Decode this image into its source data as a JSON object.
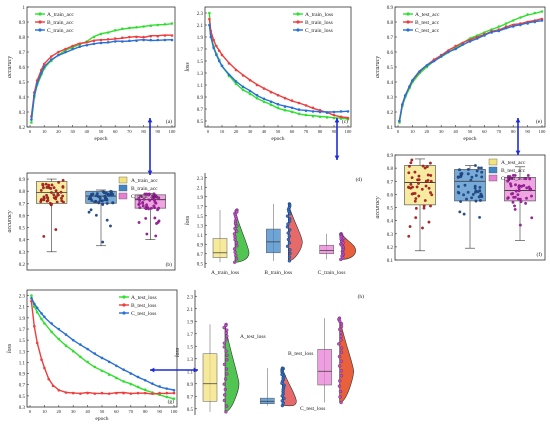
{
  "colors": {
    "A": "#2ee02e",
    "B": "#f03c3c",
    "C": "#2a6fd6",
    "connector": "#1f2bd8",
    "boxA": "#f4e27a",
    "boxB": "#3f86c8",
    "boxC": "#e87fd6"
  },
  "chart_data": [
    {
      "panel": "a",
      "type": "line",
      "tag": "(a)",
      "xlabel": "epoch",
      "ylabel": "accuracy",
      "xticks": [
        "0",
        "10",
        "20",
        "30",
        "40",
        "50",
        "60",
        "70",
        "80",
        "90",
        "100"
      ],
      "yticks": [
        "0.2",
        "0.3",
        "0.4",
        "0.5",
        "0.6",
        "0.7",
        "0.8",
        "0.9",
        "1"
      ],
      "xlim": [
        0,
        100
      ],
      "ylim": [
        0.2,
        1.0
      ],
      "grid": false,
      "legend": "top-left",
      "series": [
        {
          "name": "A_train_acc",
          "color_key": "A",
          "x": [
            1,
            3,
            5,
            8,
            10,
            15,
            20,
            25,
            30,
            35,
            40,
            45,
            50,
            55,
            60,
            65,
            70,
            75,
            80,
            85,
            90,
            95,
            100
          ],
          "y": [
            0.23,
            0.4,
            0.48,
            0.55,
            0.59,
            0.64,
            0.68,
            0.71,
            0.73,
            0.75,
            0.77,
            0.8,
            0.82,
            0.83,
            0.845,
            0.855,
            0.86,
            0.865,
            0.87,
            0.875,
            0.88,
            0.885,
            0.89
          ]
        },
        {
          "name": "B_train_acc",
          "color_key": "B",
          "x": [
            1,
            3,
            5,
            8,
            10,
            15,
            20,
            25,
            30,
            35,
            40,
            45,
            50,
            55,
            60,
            65,
            70,
            75,
            80,
            85,
            90,
            95,
            100
          ],
          "y": [
            0.27,
            0.43,
            0.51,
            0.58,
            0.62,
            0.67,
            0.7,
            0.72,
            0.74,
            0.755,
            0.765,
            0.775,
            0.78,
            0.785,
            0.79,
            0.795,
            0.8,
            0.8,
            0.8,
            0.805,
            0.805,
            0.81,
            0.81
          ]
        },
        {
          "name": "C_train_acc",
          "color_key": "C",
          "x": [
            1,
            3,
            5,
            8,
            10,
            15,
            20,
            25,
            30,
            35,
            40,
            45,
            50,
            55,
            60,
            65,
            70,
            75,
            80,
            85,
            90,
            95,
            100
          ],
          "y": [
            0.25,
            0.41,
            0.49,
            0.56,
            0.6,
            0.65,
            0.68,
            0.7,
            0.72,
            0.735,
            0.745,
            0.755,
            0.76,
            0.765,
            0.77,
            0.77,
            0.775,
            0.775,
            0.78,
            0.78,
            0.78,
            0.78,
            0.78
          ]
        }
      ]
    },
    {
      "panel": "c",
      "type": "line",
      "tag": "(c)",
      "xlabel": "epoch",
      "ylabel": "loss",
      "xticks": [
        "0",
        "10",
        "20",
        "30",
        "40",
        "50",
        "60",
        "70",
        "80",
        "90",
        "100"
      ],
      "yticks": [
        "0.5",
        "0.7",
        "0.9",
        "1.1",
        "1.3",
        "1.5",
        "1.7",
        "1.9",
        "2.1",
        "2.3"
      ],
      "xlim": [
        0,
        100
      ],
      "ylim": [
        0.4,
        2.4
      ],
      "grid": false,
      "legend": "top-right",
      "series": [
        {
          "name": "A_train_loss",
          "color_key": "A",
          "x": [
            1,
            2,
            4,
            6,
            8,
            10,
            15,
            20,
            25,
            30,
            35,
            40,
            45,
            50,
            55,
            60,
            65,
            70,
            75,
            80,
            85,
            90,
            95,
            100
          ],
          "y": [
            2.3,
            1.95,
            1.75,
            1.62,
            1.52,
            1.42,
            1.25,
            1.12,
            1.02,
            0.95,
            0.88,
            0.82,
            0.77,
            0.72,
            0.68,
            0.65,
            0.62,
            0.6,
            0.58,
            0.57,
            0.56,
            0.55,
            0.54,
            0.53
          ]
        },
        {
          "name": "B_train_loss",
          "color_key": "B",
          "x": [
            1,
            2,
            4,
            6,
            8,
            10,
            15,
            20,
            25,
            30,
            35,
            40,
            45,
            50,
            55,
            60,
            65,
            70,
            75,
            80,
            85,
            90,
            95,
            100
          ],
          "y": [
            2.2,
            2.0,
            1.85,
            1.75,
            1.67,
            1.6,
            1.46,
            1.35,
            1.26,
            1.18,
            1.1,
            1.04,
            0.98,
            0.93,
            0.88,
            0.84,
            0.8,
            0.76,
            0.72,
            0.68,
            0.64,
            0.6,
            0.57,
            0.55
          ]
        },
        {
          "name": "C_train_loss",
          "color_key": "C",
          "x": [
            1,
            2,
            4,
            6,
            8,
            10,
            15,
            20,
            25,
            30,
            35,
            40,
            45,
            50,
            55,
            60,
            65,
            70,
            75,
            80,
            85,
            90,
            95,
            100
          ],
          "y": [
            2.1,
            1.9,
            1.72,
            1.6,
            1.5,
            1.42,
            1.27,
            1.16,
            1.07,
            1.0,
            0.93,
            0.87,
            0.82,
            0.78,
            0.74,
            0.72,
            0.69,
            0.67,
            0.66,
            0.65,
            0.64,
            0.65,
            0.66,
            0.66
          ]
        }
      ]
    },
    {
      "panel": "e",
      "type": "line",
      "tag": "(e)",
      "xlabel": "epoch",
      "ylabel": "accuracy",
      "xticks": [
        "0",
        "10",
        "20",
        "30",
        "40",
        "50",
        "60",
        "70",
        "80",
        "90",
        "100"
      ],
      "yticks": [
        "0.1",
        "0.2",
        "0.3",
        "0.4",
        "0.5",
        "0.6",
        "0.7",
        "0.8",
        "0.9"
      ],
      "xlim": [
        0,
        100
      ],
      "ylim": [
        0.1,
        0.9
      ],
      "grid": false,
      "legend": "top-left",
      "series": [
        {
          "name": "A_test_acc",
          "color_key": "A",
          "x": [
            1,
            3,
            5,
            8,
            10,
            15,
            20,
            25,
            30,
            35,
            40,
            45,
            50,
            55,
            60,
            65,
            70,
            75,
            80,
            85,
            90,
            95,
            100
          ],
          "y": [
            0.13,
            0.24,
            0.3,
            0.36,
            0.4,
            0.46,
            0.5,
            0.54,
            0.57,
            0.6,
            0.63,
            0.66,
            0.69,
            0.71,
            0.73,
            0.75,
            0.77,
            0.79,
            0.81,
            0.83,
            0.85,
            0.86,
            0.87
          ]
        },
        {
          "name": "B_test_acc",
          "color_key": "B",
          "x": [
            1,
            3,
            5,
            8,
            10,
            15,
            20,
            25,
            30,
            35,
            40,
            45,
            50,
            55,
            60,
            65,
            70,
            75,
            80,
            85,
            90,
            95,
            100
          ],
          "y": [
            0.14,
            0.25,
            0.31,
            0.37,
            0.41,
            0.47,
            0.51,
            0.55,
            0.58,
            0.61,
            0.64,
            0.66,
            0.68,
            0.7,
            0.72,
            0.74,
            0.75,
            0.77,
            0.78,
            0.79,
            0.8,
            0.81,
            0.82
          ]
        },
        {
          "name": "C_test_acc",
          "color_key": "C",
          "x": [
            1,
            3,
            5,
            8,
            10,
            15,
            20,
            25,
            30,
            35,
            40,
            45,
            50,
            55,
            60,
            65,
            70,
            75,
            80,
            85,
            90,
            95,
            100
          ],
          "y": [
            0.14,
            0.25,
            0.31,
            0.37,
            0.41,
            0.47,
            0.51,
            0.54,
            0.57,
            0.6,
            0.62,
            0.65,
            0.67,
            0.69,
            0.71,
            0.73,
            0.74,
            0.76,
            0.77,
            0.78,
            0.79,
            0.8,
            0.81
          ]
        }
      ]
    },
    {
      "panel": "g",
      "type": "line",
      "tag": "(g)",
      "xlabel": "epoch",
      "ylabel": "loss",
      "xticks": [
        "0",
        "10",
        "20",
        "30",
        "40",
        "50",
        "60",
        "70",
        "80",
        "90",
        "100"
      ],
      "yticks": [
        "0.3",
        "0.5",
        "0.7",
        "0.9",
        "1.1",
        "1.3",
        "1.5",
        "1.7",
        "1.9",
        "2.1",
        "2.3"
      ],
      "xlim": [
        0,
        100
      ],
      "ylim": [
        0.3,
        2.4
      ],
      "grid": false,
      "legend": "top-right",
      "series": [
        {
          "name": "A_test_loss",
          "color_key": "A",
          "x": [
            1,
            3,
            5,
            8,
            10,
            15,
            20,
            25,
            30,
            35,
            40,
            45,
            50,
            55,
            60,
            65,
            70,
            75,
            80,
            85,
            90,
            95,
            100
          ],
          "y": [
            2.3,
            2.1,
            2.0,
            1.88,
            1.8,
            1.65,
            1.52,
            1.4,
            1.3,
            1.2,
            1.11,
            1.02,
            0.95,
            0.88,
            0.82,
            0.76,
            0.71,
            0.66,
            0.61,
            0.56,
            0.52,
            0.48,
            0.45
          ]
        },
        {
          "name": "B_test_loss",
          "color_key": "B",
          "x": [
            1,
            3,
            5,
            8,
            10,
            13,
            16,
            20,
            25,
            30,
            35,
            40,
            45,
            50,
            55,
            60,
            65,
            70,
            75,
            80,
            85,
            90,
            95,
            100
          ],
          "y": [
            2.2,
            1.75,
            1.45,
            1.15,
            1.0,
            0.8,
            0.68,
            0.6,
            0.56,
            0.55,
            0.54,
            0.55,
            0.54,
            0.55,
            0.54,
            0.55,
            0.55,
            0.54,
            0.55,
            0.55,
            0.54,
            0.55,
            0.55,
            0.55
          ]
        },
        {
          "name": "C_test_loss",
          "color_key": "C",
          "x": [
            1,
            3,
            5,
            8,
            10,
            15,
            20,
            25,
            30,
            35,
            40,
            45,
            50,
            55,
            60,
            65,
            70,
            75,
            80,
            85,
            90,
            95,
            100
          ],
          "y": [
            2.25,
            2.15,
            2.08,
            1.98,
            1.92,
            1.8,
            1.7,
            1.6,
            1.5,
            1.42,
            1.34,
            1.26,
            1.18,
            1.11,
            1.04,
            0.97,
            0.9,
            0.84,
            0.78,
            0.72,
            0.67,
            0.63,
            0.6
          ]
        }
      ]
    },
    {
      "panel": "b",
      "type": "box",
      "tag": "(b)",
      "ylabel": "accuracy",
      "yticks": [
        "0.2",
        "0.3",
        "0.4",
        "0.5",
        "0.6",
        "0.7",
        "0.8",
        "0.9"
      ],
      "ylim": [
        0.15,
        0.95
      ],
      "legend": "top-right",
      "series": [
        {
          "name": "A_train_acc",
          "color_key": "boxA",
          "min": 0.3,
          "q1": 0.7,
          "median": 0.79,
          "q3": 0.88,
          "max": 0.9
        },
        {
          "name": "B_train_acc",
          "color_key": "boxB",
          "min": 0.35,
          "q1": 0.7,
          "median": 0.76,
          "q3": 0.8,
          "max": 0.81
        },
        {
          "name": "C_train_acc",
          "color_key": "boxC",
          "min": 0.4,
          "q1": 0.66,
          "median": 0.73,
          "q3": 0.77,
          "max": 0.78
        }
      ]
    },
    {
      "panel": "d",
      "type": "raincloud",
      "tag": "(d)",
      "ylabel": "loss",
      "yticks": [
        "0.5",
        "0.7",
        "0.9",
        "1.1",
        "1.3",
        "1.5",
        "1.7",
        "1.9",
        "2.1",
        "2.3"
      ],
      "ylim": [
        0.4,
        2.4
      ],
      "series": [
        {
          "name": "A_train_loss",
          "color_key": "boxA",
          "min": 0.52,
          "q1": 0.62,
          "median": 0.72,
          "q3": 1.02,
          "max": 1.62
        },
        {
          "name": "B_train_loss",
          "color_key": "boxB",
          "min": 0.55,
          "q1": 0.72,
          "median": 0.95,
          "q3": 1.22,
          "max": 1.75
        },
        {
          "name": "C_train_loss",
          "color_key": "boxC",
          "min": 0.58,
          "q1": 0.7,
          "median": 0.77,
          "q3": 0.88,
          "max": 1.12
        }
      ]
    },
    {
      "panel": "f",
      "type": "box",
      "tag": "(f)",
      "ylabel": "accuracy",
      "yticks": [
        "0.1",
        "0.2",
        "0.3",
        "0.4",
        "0.5",
        "0.6",
        "0.7",
        "0.8",
        "0.9"
      ],
      "ylim": [
        0.1,
        0.9
      ],
      "legend": "top-right",
      "series": [
        {
          "name": "A_test_acc",
          "color_key": "boxA",
          "min": 0.17,
          "q1": 0.52,
          "median": 0.69,
          "q3": 0.82,
          "max": 0.87
        },
        {
          "name": "B_test_acc",
          "color_key": "boxB",
          "min": 0.19,
          "q1": 0.55,
          "median": 0.7,
          "q3": 0.79,
          "max": 0.82
        },
        {
          "name": "C_test_acc",
          "color_key": "boxC",
          "min": 0.25,
          "q1": 0.55,
          "median": 0.63,
          "q3": 0.73,
          "max": 0.81
        }
      ]
    },
    {
      "panel": "h",
      "type": "raincloud",
      "tag": "(h)",
      "ylabel": "loss",
      "yticks": [
        "0.5",
        "0.7",
        "0.9",
        "1.1",
        "1.3",
        "1.5",
        "1.7",
        "1.9",
        "2.1",
        "2.3"
      ],
      "ylim": [
        0.4,
        2.4
      ],
      "series": [
        {
          "name": "A_test_loss",
          "color_key": "boxA",
          "min": 0.45,
          "q1": 0.62,
          "median": 0.9,
          "q3": 1.38,
          "max": 1.85
        },
        {
          "name": "B_test_loss",
          "color_key": "boxB",
          "min": 0.55,
          "q1": 0.58,
          "median": 0.62,
          "q3": 0.67,
          "max": 1.15
        },
        {
          "name": "C_test_loss",
          "color_key": "boxC",
          "min": 0.6,
          "q1": 0.88,
          "median": 1.1,
          "q3": 1.45,
          "max": 1.95
        }
      ]
    }
  ]
}
